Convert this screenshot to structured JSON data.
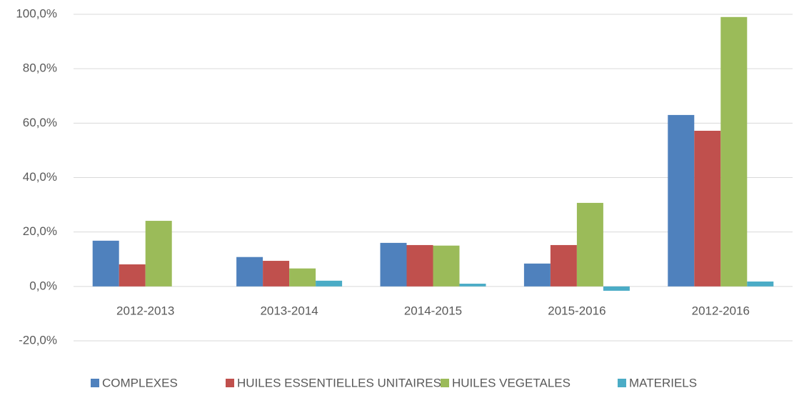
{
  "chart_data": {
    "type": "bar",
    "categories": [
      "2012-2013",
      "2013-2014",
      "2014-2015",
      "2015-2016",
      "2012-2016"
    ],
    "series": [
      {
        "name": "COMPLEXES",
        "color": "#4f81bd",
        "values": [
          16.8,
          10.8,
          16.0,
          8.4,
          63.0
        ]
      },
      {
        "name": "HUILES ESSENTIELLES UNITAIRES",
        "color": "#c0504d",
        "values": [
          8.1,
          9.4,
          15.2,
          15.2,
          57.2
        ]
      },
      {
        "name": "HUILES VEGETALES",
        "color": "#9bbb59",
        "values": [
          24.1,
          6.6,
          15.0,
          30.7,
          99.0
        ]
      },
      {
        "name": "MATERIELS",
        "color": "#4bacc6",
        "values": [
          0,
          2.1,
          1.0,
          -1.6,
          1.8
        ]
      }
    ],
    "ylim": [
      -20,
      100
    ],
    "yticks": [
      {
        "value": -20,
        "label": "-20,0%"
      },
      {
        "value": 0,
        "label": "0,0%"
      },
      {
        "value": 20,
        "label": "20,0%"
      },
      {
        "value": 40,
        "label": "40,0%"
      },
      {
        "value": 60,
        "label": "60,0%"
      },
      {
        "value": 80,
        "label": "80,0%"
      },
      {
        "value": 100,
        "label": "100,0%"
      }
    ],
    "grid": true,
    "legend": "bottom"
  }
}
